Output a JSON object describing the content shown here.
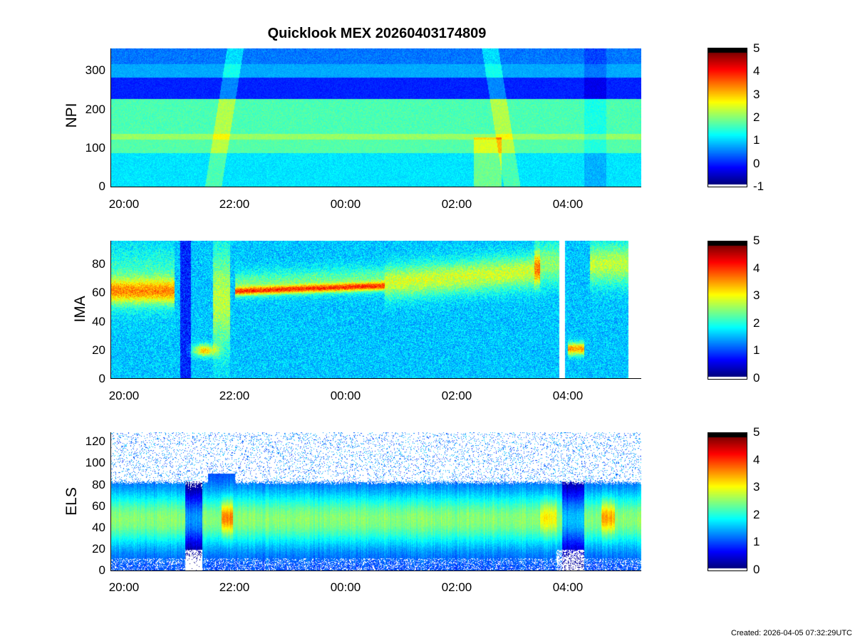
{
  "title": "Quicklook MEX 20260403174809",
  "created": "Created: 2026-04-05 07:32:29UTC",
  "x_ticks": [
    "20:00",
    "22:00",
    "00:00",
    "02:00",
    "04:00"
  ],
  "chart_data": [
    {
      "type": "heatmap",
      "ylabel": "NPI",
      "ylim": [
        0,
        360
      ],
      "yticks": [
        0,
        100,
        200,
        300
      ],
      "xlim": [
        "19:45",
        "05:20"
      ],
      "x_ticks": [
        "20:00",
        "22:00",
        "00:00",
        "02:00",
        "04:00"
      ],
      "colorbar": {
        "range": [
          -1,
          5
        ],
        "ticks": [
          -1,
          0,
          1,
          2,
          3,
          4,
          5
        ]
      }
    },
    {
      "type": "heatmap",
      "ylabel": "IMA",
      "ylim": [
        0,
        96
      ],
      "yticks": [
        0,
        20,
        40,
        60,
        80
      ],
      "xlim": [
        "19:45",
        "05:20"
      ],
      "x_ticks": [
        "20:00",
        "22:00",
        "00:00",
        "02:00",
        "04:00"
      ],
      "colorbar": {
        "range": [
          0,
          5
        ],
        "ticks": [
          0,
          1,
          2,
          3,
          4,
          5
        ]
      }
    },
    {
      "type": "heatmap",
      "ylabel": "ELS",
      "ylim": [
        0,
        128
      ],
      "yticks": [
        0,
        20,
        40,
        60,
        80,
        100,
        120
      ],
      "xlim": [
        "19:45",
        "05:20"
      ],
      "x_ticks": [
        "20:00",
        "22:00",
        "00:00",
        "02:00",
        "04:00"
      ],
      "colorbar": {
        "range": [
          0,
          5
        ],
        "ticks": [
          0,
          1,
          2,
          3,
          4,
          5
        ]
      }
    }
  ]
}
